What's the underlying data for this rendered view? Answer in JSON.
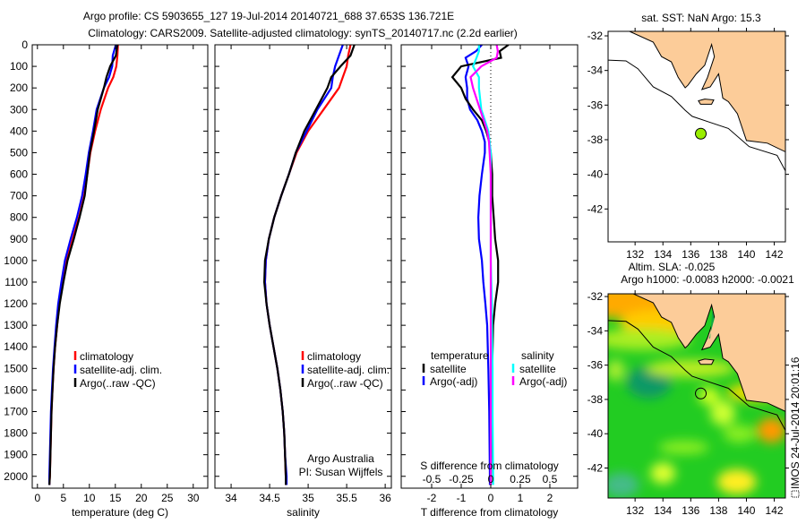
{
  "title_line1": "Argo profile: CS 5903655_127 19-Jul-2014 20140721_688 37.653S 136.721E",
  "title_line2": "Climatology: CARS2009. Satellite-adjusted climatology: synTS_20140717.nc (2.2d earlier)",
  "colors": {
    "climatology": "#ff0000",
    "satellite": "#0000ff",
    "argo": "#000000",
    "sal_satellite": "#00ffff",
    "sal_argo": "#ff00ff",
    "land": "#fccc99",
    "float_marker": "#99ee00"
  },
  "chart_data": [
    {
      "type": "line",
      "xlabel": "temperature (deg C)",
      "ylabel": "",
      "xlim": [
        -1,
        32.8
      ],
      "ylim": [
        2055,
        0
      ],
      "xticks": [
        0,
        5,
        10,
        15,
        20,
        25,
        30
      ],
      "xtick_labels": [
        "0",
        "5",
        "10",
        "15",
        "20",
        "25",
        "30"
      ],
      "yticks": [
        0,
        100,
        200,
        300,
        400,
        500,
        600,
        700,
        800,
        900,
        1000,
        1100,
        1200,
        1300,
        1400,
        1500,
        1600,
        1700,
        1800,
        1900,
        2000
      ],
      "ytick_labels": [
        "0",
        "100",
        "200",
        "300",
        "400",
        "500",
        "600",
        "700",
        "800",
        "900",
        "1000",
        "1100",
        "1200",
        "1300",
        "1400",
        "1500",
        "1600",
        "1700",
        "1800",
        "1900",
        "2000"
      ],
      "depth": [
        0,
        50,
        100,
        150,
        200,
        300,
        400,
        500,
        600,
        700,
        800,
        900,
        1000,
        1100,
        1200,
        1300,
        1400,
        1500,
        1600,
        1700,
        1800,
        1900,
        2000,
        2040
      ],
      "series": [
        {
          "name": "climatology",
          "color": "#ff0000",
          "values": [
            15.5,
            15.4,
            15.2,
            14.6,
            13.6,
            12.2,
            11.1,
            10.2,
            9.6,
            9.0,
            8.0,
            6.8,
            5.6,
            4.8,
            4.2,
            3.8,
            3.4,
            3.1,
            2.9,
            2.7,
            2.6,
            2.5,
            2.4,
            2.3
          ]
        },
        {
          "name": "satellite-adj. clim.",
          "color": "#0000ff",
          "values": [
            15.1,
            14.5,
            14.4,
            13.8,
            12.8,
            11.4,
            10.7,
            9.9,
            9.3,
            8.6,
            7.6,
            6.4,
            5.3,
            4.6,
            4.0,
            3.6,
            3.3,
            3.0,
            2.8,
            2.6,
            2.5,
            2.4,
            2.3,
            2.3
          ]
        },
        {
          "name": "Argo(..raw -QC)",
          "color": "#000000",
          "values": [
            15.4,
            15.1,
            14.0,
            13.3,
            12.8,
            11.6,
            10.9,
            10.1,
            9.6,
            9.1,
            8.1,
            7.0,
            5.8,
            5.0,
            4.3,
            3.8,
            3.4,
            3.1,
            2.9,
            2.7,
            2.6,
            2.5,
            2.4,
            2.3
          ]
        }
      ],
      "legend": "lower-left"
    },
    {
      "type": "line",
      "xlabel": "salinity",
      "xlim": [
        33.79,
        36.08
      ],
      "ylim": [
        2055,
        0
      ],
      "xticks": [
        34,
        34.5,
        35,
        35.5,
        36
      ],
      "xtick_labels": [
        "34",
        "34.5",
        "35",
        "35.5",
        "36"
      ],
      "yticks": [
        0,
        100,
        200,
        300,
        400,
        500,
        600,
        700,
        800,
        900,
        1000,
        1100,
        1200,
        1300,
        1400,
        1500,
        1600,
        1700,
        1800,
        1900,
        2000
      ],
      "depth": [
        0,
        50,
        100,
        150,
        200,
        300,
        400,
        500,
        600,
        700,
        800,
        900,
        1000,
        1100,
        1200,
        1300,
        1400,
        1500,
        1600,
        1700,
        1800,
        1900,
        2000,
        2040
      ],
      "series": [
        {
          "name": "climatology",
          "color": "#ff0000",
          "values": [
            35.55,
            35.52,
            35.5,
            35.45,
            35.4,
            35.2,
            35.0,
            34.85,
            34.75,
            34.65,
            34.56,
            34.49,
            34.45,
            34.44,
            34.46,
            34.5,
            34.55,
            34.6,
            34.64,
            34.67,
            34.69,
            34.7,
            34.71,
            34.71
          ]
        },
        {
          "name": "satellite-adj. clim.",
          "color": "#0000ff",
          "values": [
            35.45,
            35.4,
            35.35,
            35.32,
            35.3,
            35.12,
            34.98,
            34.84,
            34.75,
            34.65,
            34.56,
            34.49,
            34.45,
            34.44,
            34.46,
            34.5,
            34.55,
            34.6,
            34.64,
            34.67,
            34.69,
            34.7,
            34.72,
            34.72
          ]
        },
        {
          "name": "Argo(..raw -QC)",
          "color": "#000000",
          "values": [
            35.6,
            35.55,
            35.42,
            35.3,
            35.25,
            35.1,
            34.95,
            34.84,
            34.75,
            34.65,
            34.56,
            34.49,
            34.44,
            34.43,
            34.46,
            34.5,
            34.55,
            34.6,
            34.64,
            34.67,
            34.69,
            34.7,
            34.71,
            34.71
          ]
        }
      ],
      "annotations": [
        "Argo Australia",
        "PI: Susan Wijffels"
      ],
      "legend": "lower-center"
    },
    {
      "type": "line",
      "xlabel": "T difference from climatology",
      "x2label": "S difference from climatology",
      "xlim": [
        -3.03,
        2.94
      ],
      "x2lim": [
        -0.7575,
        0.735
      ],
      "ylim": [
        2055,
        0
      ],
      "xticks": [
        -2,
        -1,
        0,
        1,
        2
      ],
      "xtick_labels": [
        "-2",
        "-1",
        "0",
        "1",
        "2"
      ],
      "x2ticks": [
        -0.5,
        -0.25,
        0,
        0.25,
        0.5
      ],
      "x2tick_labels": [
        "-0.5",
        "-0.25",
        "0",
        "0.25",
        "0.5"
      ],
      "yticks": [
        0,
        100,
        200,
        300,
        400,
        500,
        600,
        700,
        800,
        900,
        1000,
        1100,
        1200,
        1300,
        1400,
        1500,
        1600,
        1700,
        1800,
        1900,
        2000
      ],
      "depth": [
        0,
        30,
        60,
        100,
        150,
        200,
        250,
        300,
        350,
        400,
        450,
        500,
        600,
        700,
        800,
        900,
        1000,
        1100,
        1200,
        1300,
        1500,
        1700,
        2000,
        2040
      ],
      "series": [
        {
          "name": "temperature satellite",
          "axis": "T",
          "color": "#0000ff",
          "values": [
            -0.3,
            -0.5,
            -0.85,
            -0.75,
            -0.85,
            -0.8,
            -0.8,
            -0.7,
            -0.45,
            -0.3,
            -0.2,
            -0.2,
            -0.3,
            -0.38,
            -0.42,
            -0.4,
            -0.3,
            -0.25,
            -0.18,
            -0.12,
            -0.08,
            -0.05,
            -0.03,
            -0.03
          ]
        },
        {
          "name": "temperature Argo(-adj)",
          "axis": "T",
          "color": "#000000",
          "values": [
            0.6,
            0.3,
            0.35,
            -1.0,
            -1.3,
            -1.0,
            -0.85,
            -0.6,
            -0.3,
            -0.15,
            -0.05,
            0,
            0.05,
            0.05,
            0.1,
            0.15,
            0.25,
            0.25,
            0.15,
            0.08,
            0.05,
            0.03,
            0,
            0
          ]
        },
        {
          "name": "salinity satellite",
          "axis": "S",
          "color": "#00ffff",
          "values": [
            -0.1,
            -0.1,
            -0.12,
            -0.15,
            -0.1,
            -0.1,
            -0.09,
            -0.08,
            -0.05,
            -0.02,
            -0.01,
            0,
            0,
            0,
            0,
            0,
            0,
            0.005,
            0.01,
            0.01,
            0.015,
            0.015,
            0.02,
            0.02
          ]
        },
        {
          "name": "salinity Argo(-adj)",
          "axis": "S",
          "color": "#ff00ff",
          "values": [
            0.05,
            0.06,
            0.05,
            -0.08,
            -0.17,
            -0.15,
            -0.12,
            -0.09,
            -0.06,
            -0.03,
            -0.015,
            -0.01,
            0,
            0,
            0,
            0,
            0,
            0,
            0,
            0,
            0,
            0,
            0,
            0
          ]
        }
      ],
      "legend_headers": [
        "temperature",
        "salinity"
      ],
      "legend_items": [
        "satellite",
        "Argo(-adj)",
        "satellite",
        "Argo(-adj)"
      ]
    },
    {
      "type": "map",
      "title": "sat. SST: NaN Argo: 15.3",
      "xlim": [
        130.06,
        142.8
      ],
      "ylim": [
        -43.9,
        -31.74
      ],
      "xticks": [
        132,
        134,
        136,
        138,
        140,
        142
      ],
      "xtick_labels": [
        "132",
        "134",
        "136",
        "138",
        "140",
        "142"
      ],
      "yticks": [
        -32,
        -34,
        -36,
        -38,
        -40,
        -42
      ],
      "ytick_labels": [
        "-32",
        "-34",
        "-36",
        "-38",
        "-40",
        "-42"
      ],
      "float_position": {
        "lon": 136.721,
        "lat": -37.653
      }
    },
    {
      "type": "heatmap",
      "title_line1": "Altim. SLA: -0.025",
      "title_line2": "Argo h1000: -0.0083 h2000: -0.0021",
      "xlim": [
        130.06,
        142.8
      ],
      "ylim": [
        -43.75,
        -31.84
      ],
      "xticks": [
        132,
        134,
        136,
        138,
        140,
        142
      ],
      "xtick_labels": [
        "132",
        "134",
        "136",
        "138",
        "140",
        "142"
      ],
      "yticks": [
        -32,
        -34,
        -36,
        -38,
        -40,
        -42
      ],
      "ytick_labels": [
        "-32",
        "-34",
        "-36",
        "-38",
        "-40",
        "-42"
      ],
      "float_position": {
        "lon": 136.721,
        "lat": -37.653
      }
    }
  ],
  "coastline": [
    [
      131.6,
      -31.74
    ],
    [
      133.3,
      -32.36
    ],
    [
      133.9,
      -33.2
    ],
    [
      134.6,
      -33.5
    ],
    [
      135.1,
      -34.4
    ],
    [
      135.6,
      -35.0
    ],
    [
      135.8,
      -34.85
    ],
    [
      136.4,
      -34.2
    ],
    [
      137.0,
      -33.7
    ],
    [
      137.5,
      -32.5
    ],
    [
      137.7,
      -33.2
    ],
    [
      137.2,
      -34.4
    ],
    [
      136.8,
      -35.1
    ],
    [
      137.4,
      -34.95
    ],
    [
      138.0,
      -34.2
    ],
    [
      138.2,
      -35.1
    ],
    [
      138.3,
      -35.6
    ],
    [
      138.7,
      -35.8
    ],
    [
      139.35,
      -36.5
    ],
    [
      140.0,
      -38.05
    ],
    [
      141.5,
      -38.2
    ],
    [
      142.8,
      -38.7
    ],
    [
      142.8,
      -31.74
    ]
  ],
  "kangaroo_island": [
    [
      136.55,
      -35.75
    ],
    [
      137.0,
      -35.65
    ],
    [
      137.65,
      -35.7
    ],
    [
      137.5,
      -35.95
    ],
    [
      136.7,
      -35.95
    ]
  ],
  "shelf_edge": [
    [
      130.06,
      -33.4
    ],
    [
      131.35,
      -33.45
    ],
    [
      132.2,
      -33.9
    ],
    [
      133.3,
      -34.95
    ],
    [
      134.6,
      -35.5
    ],
    [
      135.6,
      -36.3
    ],
    [
      136.1,
      -36.65
    ],
    [
      137.4,
      -37.0
    ],
    [
      138.7,
      -37.35
    ],
    [
      140.2,
      -38.4
    ],
    [
      142.2,
      -38.9
    ],
    [
      142.8,
      -39.8
    ]
  ],
  "footer_stamp": "IMOS 24-Jul-2014 20:01:16"
}
